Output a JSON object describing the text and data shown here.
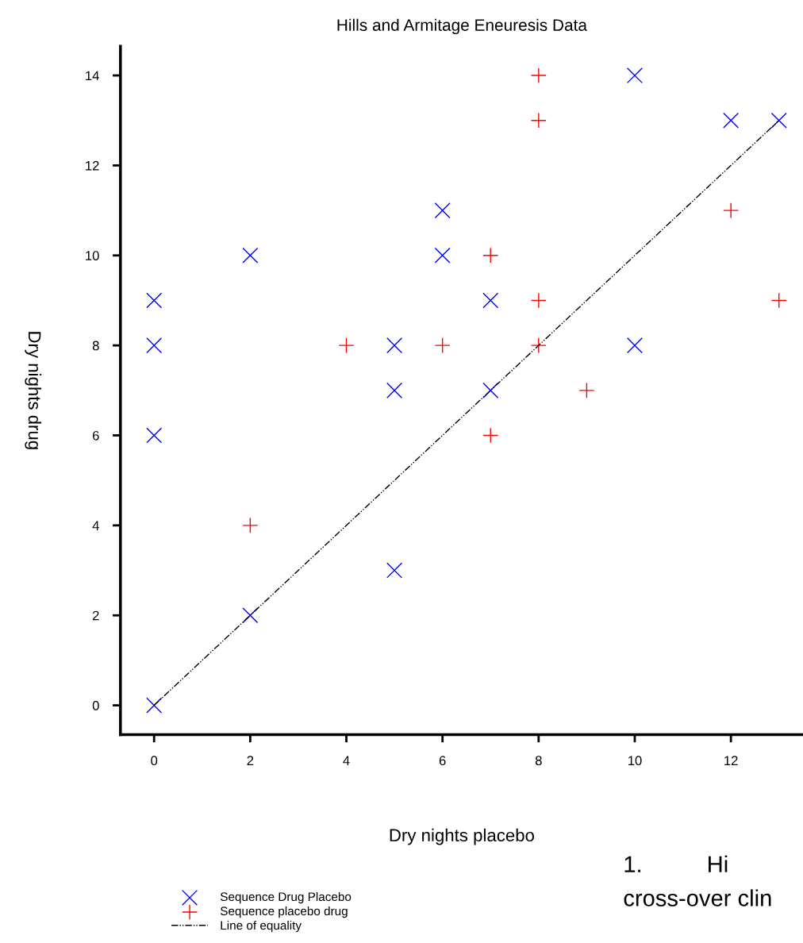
{
  "chart_data": {
    "type": "scatter",
    "title": "Hills and Armitage Eneuresis Data",
    "xlabel": "Dry nights placebo",
    "ylabel": "Dry nights drug",
    "xlim": [
      -0.7,
      13.5
    ],
    "ylim": [
      -0.65,
      14.65
    ],
    "xticks": [
      0,
      2,
      4,
      6,
      8,
      10,
      12
    ],
    "yticks": [
      0,
      2,
      4,
      6,
      8,
      10,
      12,
      14
    ],
    "grid": false,
    "legend": "bottom left",
    "series": [
      {
        "name": "Sequence Drug Placebo",
        "color": "#0000ff",
        "marker": "x",
        "x": [
          0,
          0,
          0,
          0,
          2,
          2,
          5,
          5,
          5,
          6,
          6,
          7,
          7,
          10,
          10,
          12,
          13
        ],
        "values": [
          0,
          6,
          8,
          9,
          2,
          10,
          3,
          7,
          8,
          10,
          11,
          7,
          9,
          8,
          14,
          13,
          13
        ]
      },
      {
        "name": "Sequence placebo drug",
        "color": "#ff0000",
        "marker": "cross",
        "x": [
          2,
          4,
          6,
          7,
          7,
          8,
          8,
          8,
          8,
          9,
          12,
          13
        ],
        "values": [
          4,
          8,
          8,
          6,
          10,
          8,
          9,
          13,
          14,
          7,
          11,
          9
        ]
      },
      {
        "name": "Line of equality",
        "type": "line",
        "color": "#000000",
        "line_style": "dashdot",
        "marker": "none",
        "x": [
          0,
          13
        ],
        "values": [
          0,
          13
        ]
      }
    ],
    "annotations": [
      "1.          Hi",
      "cross-over clin"
    ]
  }
}
